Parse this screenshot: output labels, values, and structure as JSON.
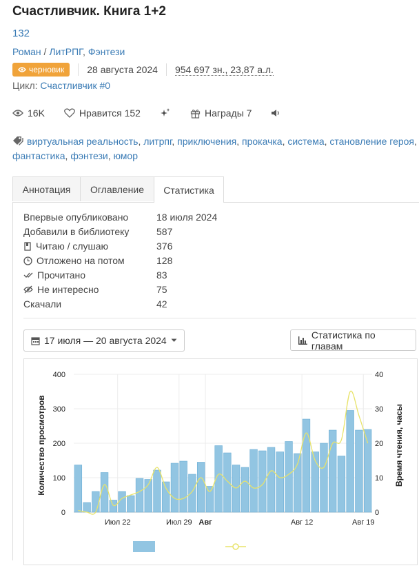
{
  "book": {
    "title": "Счастливчик. Книга 1+2",
    "number": "132",
    "genre_main": "Роман",
    "genre_sep": "/",
    "genre_1": "ЛитРПГ",
    "genre_comma": ",",
    "genre_2": "Фэнтези",
    "badge": "черновик",
    "date": "28 августа 2024",
    "chars": "954 697 зн., 23,87 а.л.",
    "cycle_label": "Цикл:",
    "cycle_value": "Счастливчик #0"
  },
  "stats": {
    "views": "16K",
    "likes": "Нравится 152",
    "awards": "Награды 7"
  },
  "tags": [
    "виртуальная реальность",
    "литрпг",
    "приключения",
    "прокачка",
    "система",
    "становление героя",
    "фантастика",
    "фэнтези",
    "юмор"
  ],
  "tabs": [
    "Аннотация",
    "Оглавление",
    "Статистика"
  ],
  "details": [
    {
      "label": "Впервые опубликовано",
      "value": "18 июля 2024",
      "icon": ""
    },
    {
      "label": "Добавили в библиотеку",
      "value": "587",
      "icon": ""
    },
    {
      "label": "Читаю / слушаю",
      "value": "376",
      "icon": "book-icon"
    },
    {
      "label": "Отложено на потом",
      "value": "128",
      "icon": "clock-icon"
    },
    {
      "label": "Прочитано",
      "value": "83",
      "icon": "check-icon"
    },
    {
      "label": "Не интересно",
      "value": "75",
      "icon": "eye-off-icon"
    },
    {
      "label": "Скачали",
      "value": "42",
      "icon": ""
    }
  ],
  "date_range": "17 июля — 20 августа 2024",
  "chapter_stats_button": "Статистика по главам",
  "chart_data": {
    "type": "bar",
    "ylabel": "Количество просмотров",
    "y2label": "Время чтения, часы",
    "ylim": [
      0,
      400
    ],
    "y2lim": [
      0,
      40
    ],
    "yticks": [
      "0",
      "100",
      "200",
      "300",
      "400"
    ],
    "y2ticks": [
      "0",
      "10",
      "20",
      "30",
      "40"
    ],
    "x_labels": [
      {
        "label": "Июл 22",
        "index": 5,
        "bold": false
      },
      {
        "label": "Июл 29",
        "index": 12,
        "bold": false
      },
      {
        "label": "Авг",
        "index": 15,
        "bold": true
      },
      {
        "label": "Авг 12",
        "index": 26,
        "bold": false
      },
      {
        "label": "Авг 19",
        "index": 33,
        "bold": false
      }
    ],
    "views": [
      137,
      28,
      60,
      115,
      35,
      60,
      48,
      98,
      95,
      122,
      88,
      142,
      148,
      110,
      145,
      75,
      193,
      172,
      137,
      130,
      182,
      178,
      188,
      175,
      205,
      170,
      270,
      175,
      200,
      238,
      163,
      295,
      238,
      240
    ],
    "reading_hours": [
      0.5,
      0,
      0,
      8,
      2,
      4,
      5,
      6,
      8,
      13,
      7,
      4,
      4,
      6,
      10,
      6,
      11,
      9,
      7,
      9,
      7,
      8,
      12,
      10,
      11,
      14,
      23,
      15,
      13,
      20,
      21,
      35,
      28,
      20
    ]
  }
}
